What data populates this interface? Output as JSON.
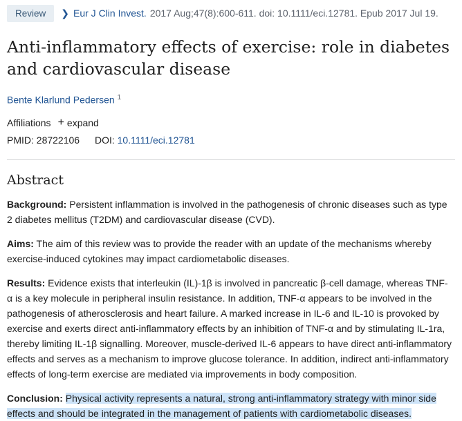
{
  "header": {
    "badge": "Review",
    "journal": "Eur J Clin Invest.",
    "citation": "2017 Aug;47(8):600-611. doi: 10.1111/eci.12781. Epub 2017 Jul 19."
  },
  "title": "Anti-inflammatory effects of exercise: role in diabetes and cardiovascular disease",
  "author": {
    "name": "Bente Klarlund Pedersen",
    "sup": "1"
  },
  "affiliations": {
    "label": "Affiliations",
    "expand": "expand"
  },
  "ids": {
    "pmid_label": "PMID:",
    "pmid": "28722106",
    "doi_label": "DOI:",
    "doi": "10.1111/eci.12781"
  },
  "abstract": {
    "heading": "Abstract",
    "background_label": "Background:",
    "background": "Persistent inflammation is involved in the pathogenesis of chronic diseases such as type 2 diabetes mellitus (T2DM) and cardiovascular disease (CVD).",
    "aims_label": "Aims:",
    "aims": "The aim of this review was to provide the reader with an update of the mechanisms whereby exercise-induced cytokines may impact cardiometabolic diseases.",
    "results_label": "Results:",
    "results": "Evidence exists that interleukin (IL)-1β is involved in pancreatic β-cell damage, whereas TNF-α is a key molecule in peripheral insulin resistance. In addition, TNF-α appears to be involved in the pathogenesis of atherosclerosis and heart failure. A marked increase in IL-6 and IL-10 is provoked by exercise and exerts direct anti-inflammatory effects by an inhibition of TNF-α and by stimulating IL-1ra, thereby limiting IL-1β signalling. Moreover, muscle-derived IL-6 appears to have direct anti-inflammatory effects and serves as a mechanism to improve glucose tolerance. In addition, indirect anti-inflammatory effects of long-term exercise are mediated via improvements in body composition.",
    "conclusion_label": "Conclusion:",
    "conclusion": "Physical activity represents a natural, strong anti-inflammatory strategy with minor side effects and should be integrated in the management of patients with cardiometabolic diseases."
  }
}
